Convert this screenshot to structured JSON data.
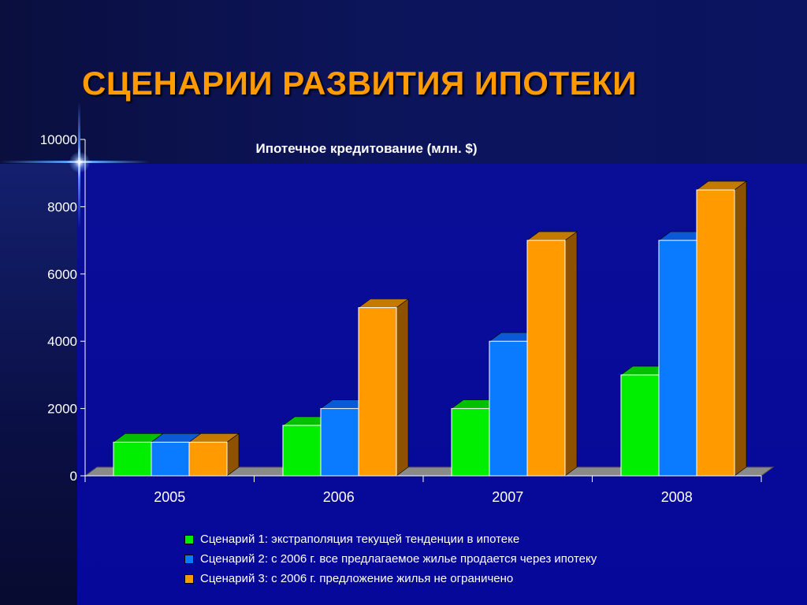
{
  "slide": {
    "title": "СЦЕНАРИИ РАЗВИТИЯ ИПОТЕКИ"
  },
  "colors": {
    "title": "#ff9a00",
    "series": [
      "#00ee00",
      "#0a7bff",
      "#ff9a00"
    ],
    "series_side": [
      "#007a00",
      "#0a3aa8",
      "#8c5200"
    ],
    "series_top": [
      "#00c000",
      "#0a5ad8",
      "#c47a00"
    ]
  },
  "chart_data": {
    "type": "bar",
    "title": "Ипотечное кредитование (млн. $)",
    "categories": [
      "2005",
      "2006",
      "2007",
      "2008"
    ],
    "series": [
      {
        "name": "Сценарий 1: экстраполяция текущей тенденции в ипотеке",
        "values": [
          1000,
          1500,
          2000,
          3000
        ]
      },
      {
        "name": "Сценарий 2: с 2006 г. все предлагаемое жилье продается через ипотеку",
        "values": [
          1000,
          2000,
          4000,
          7000
        ]
      },
      {
        "name": "Сценарий 3: с 2006 г. предложение жилья не ограничено",
        "values": [
          1000,
          5000,
          7000,
          8500
        ]
      }
    ],
    "ylim": [
      0,
      10000
    ],
    "yticks": [
      "0",
      "2000",
      "4000",
      "6000",
      "8000",
      "10000"
    ],
    "xlabel": "",
    "ylabel": "",
    "grid": false,
    "legend": "bottom"
  }
}
